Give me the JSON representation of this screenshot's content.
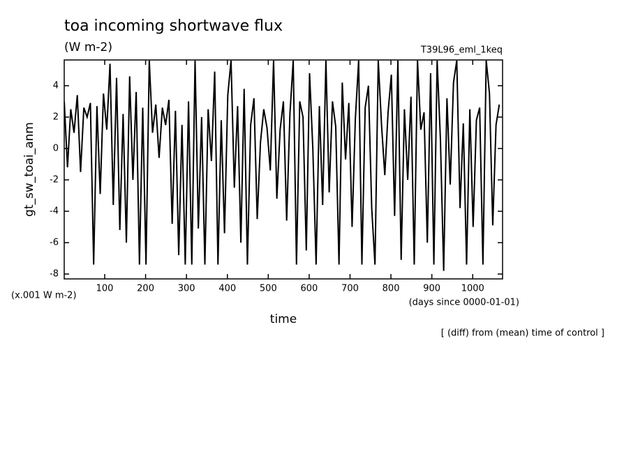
{
  "chart_data": {
    "type": "line",
    "title": "toa incoming shortwave flux",
    "subtitle": "(W m-2)",
    "run_label": "T39L96_eml_1keq",
    "y_label": "gt_sw_toai_anm",
    "x_label": "time",
    "y_unit_note": "(x.001 W m-2)",
    "x_unit_note": "(days since 0000-01-01)",
    "footer": "[ (diff) from (mean) time of control ]",
    "xlim": [
      1,
      1073
    ],
    "ylim": [
      -8.31,
      5.64
    ],
    "xticks": [
      100,
      200,
      300,
      400,
      500,
      600,
      700,
      800,
      900,
      1000
    ],
    "yticks": [
      -8,
      -6,
      -4,
      -2,
      0,
      2,
      4
    ],
    "x": [
      1,
      9,
      17,
      25,
      33,
      41,
      49,
      57,
      65,
      73,
      81,
      89,
      97,
      105,
      113,
      121,
      129,
      137,
      145,
      153,
      161,
      169,
      177,
      185,
      193,
      201,
      209,
      217,
      225,
      233,
      241,
      249,
      257,
      265,
      273,
      281,
      289,
      297,
      305,
      313,
      321,
      329,
      337,
      345,
      353,
      361,
      369,
      377,
      385,
      393,
      401,
      409,
      417,
      425,
      433,
      441,
      449,
      457,
      465,
      473,
      481,
      489,
      497,
      505,
      513,
      521,
      529,
      537,
      545,
      553,
      561,
      569,
      577,
      585,
      593,
      601,
      609,
      617,
      625,
      633,
      641,
      649,
      657,
      665,
      673,
      681,
      689,
      697,
      705,
      713,
      721,
      729,
      737,
      745,
      753,
      761,
      769,
      777,
      785,
      793,
      801,
      809,
      817,
      825,
      833,
      841,
      849,
      857,
      865,
      873,
      881,
      889,
      897,
      905,
      913,
      921,
      929,
      937,
      945,
      953,
      961,
      969,
      977,
      985,
      993,
      1001,
      1009,
      1017,
      1025,
      1033,
      1041,
      1049,
      1057,
      1065
    ],
    "series": [
      {
        "color": "#000000",
        "values": [
          3.0,
          -1.2,
          2.5,
          1.0,
          3.4,
          -1.5,
          2.6,
          2.0,
          2.9,
          -7.4,
          2.7,
          -2.9,
          3.5,
          1.2,
          5.4,
          -3.6,
          4.5,
          -5.2,
          2.2,
          -6.0,
          4.6,
          -2.0,
          3.6,
          -7.4,
          2.6,
          -7.4,
          5.6,
          1.0,
          2.8,
          -0.6,
          2.6,
          1.5,
          3.1,
          -4.8,
          2.4,
          -6.8,
          1.5,
          -7.4,
          3.0,
          -7.4,
          5.6,
          -5.1,
          2.0,
          -7.4,
          2.5,
          -0.8,
          4.9,
          -7.4,
          1.8,
          -5.4,
          3.4,
          5.6,
          -2.5,
          2.7,
          -6.0,
          3.8,
          -7.4,
          1.5,
          3.2,
          -4.5,
          0.4,
          2.5,
          1.3,
          -1.4,
          5.6,
          -3.2,
          1.2,
          3.0,
          -4.6,
          2.2,
          5.6,
          -7.4,
          3.0,
          2.0,
          -6.5,
          4.8,
          0.0,
          -7.4,
          2.7,
          -3.6,
          5.6,
          -2.8,
          3.0,
          1.4,
          -7.4,
          4.2,
          -0.7,
          2.9,
          -5.0,
          1.9,
          5.6,
          -7.4,
          2.6,
          4.0,
          -3.8,
          -7.4,
          5.6,
          1.5,
          -1.7,
          2.3,
          4.7,
          -4.3,
          5.6,
          -7.1,
          2.5,
          -2.0,
          3.3,
          -7.4,
          5.6,
          1.2,
          2.3,
          -6.0,
          4.8,
          -7.4,
          5.6,
          0.6,
          -7.8,
          3.2,
          -2.3,
          4.2,
          5.6,
          -3.8,
          1.6,
          -7.4,
          2.5,
          -5.0,
          1.8,
          2.6,
          -7.4,
          5.6,
          3.5,
          -4.9,
          1.5,
          2.8
        ]
      }
    ]
  }
}
